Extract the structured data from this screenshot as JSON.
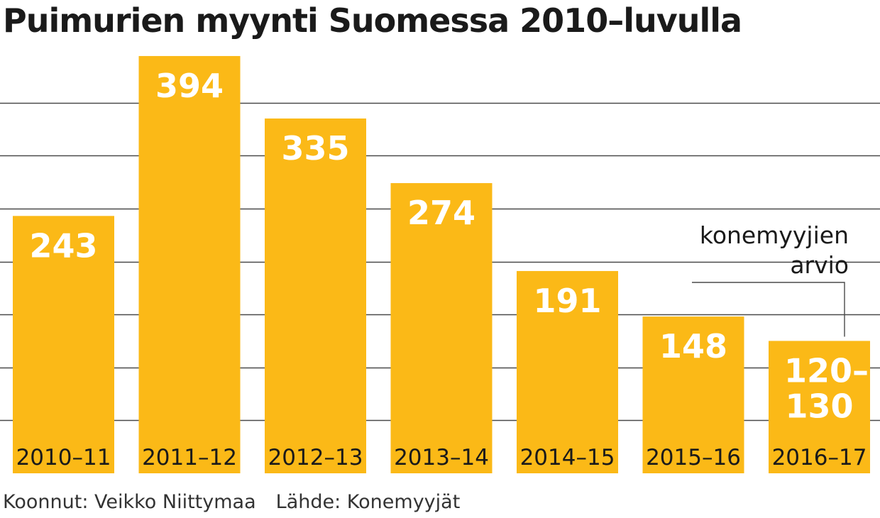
{
  "title": "Puimurien myynti Suomessa 2010–luvulla",
  "credit": {
    "author": "Koonnut: Veikko Niittymaa",
    "source": "Lähde: Konemyyjät"
  },
  "colors": {
    "bar": "#FBB917",
    "bar_label": "#ffffff",
    "category_label": "#1a1a1a",
    "grid": "#4a4a4a",
    "annotation": "#1a1a1a"
  },
  "chart_data": {
    "type": "bar",
    "title": "Puimurien myynti Suomessa 2010–luvulla",
    "categories": [
      "2010–11",
      "2011–12",
      "2012–13",
      "2013–14",
      "2014–15",
      "2015–16",
      "2016–17"
    ],
    "values": [
      243,
      394,
      335,
      274,
      191,
      148,
      125
    ],
    "value_labels": [
      "243",
      "394",
      "335",
      "274",
      "191",
      "148",
      "120–\n130"
    ],
    "ylim": [
      0,
      400
    ],
    "grid": true,
    "annotation": {
      "text_line1": "konemyyjien",
      "text_line2": "arvio",
      "target_category": "2016–17"
    }
  }
}
